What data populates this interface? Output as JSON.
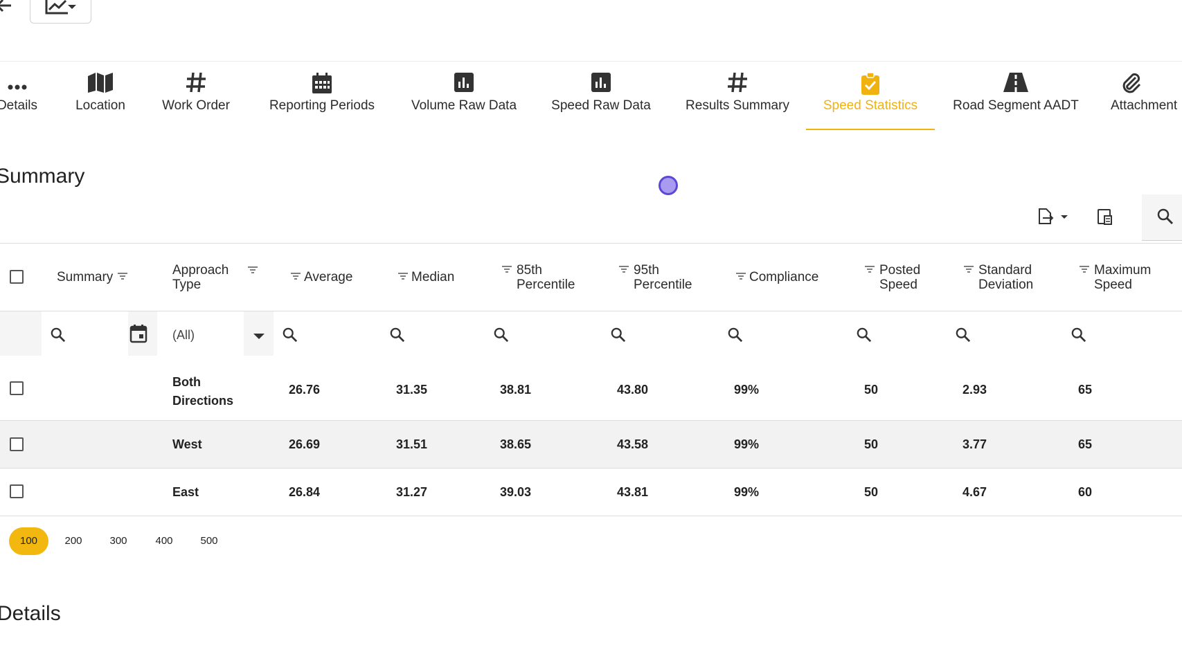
{
  "tabs": [
    {
      "label": "Details",
      "icon": "dots-icon"
    },
    {
      "label": "Location",
      "icon": "map-icon"
    },
    {
      "label": "Work Order",
      "icon": "hash-icon"
    },
    {
      "label": "Reporting Periods",
      "icon": "calendar-icon"
    },
    {
      "label": "Volume Raw Data",
      "icon": "bar-chart-icon"
    },
    {
      "label": "Speed Raw Data",
      "icon": "bar-chart-icon"
    },
    {
      "label": "Results Summary",
      "icon": "hash-icon"
    },
    {
      "label": "Speed Statistics",
      "icon": "clipboard-check-icon",
      "active": true
    },
    {
      "label": "Road Segment AADT",
      "icon": "road-icon"
    },
    {
      "label": "Attachment",
      "icon": "paperclip-icon"
    }
  ],
  "summary_title": "Summary",
  "details_title": "Details",
  "table": {
    "headers": {
      "summary": "Summary",
      "approach_line1": "Approach",
      "approach_line2": "Type",
      "average": "Average",
      "median": "Median",
      "p85_line1": "85th",
      "p85_line2": "Percentile",
      "p95_line1": "95th",
      "p95_line2": "Percentile",
      "compliance": "Compliance",
      "posted_line1": "Posted",
      "posted_line2": "Speed",
      "stddev_line1": "Standard",
      "stddev_line2": "Deviation",
      "max_line1": "Maximum",
      "max_line2": "Speed"
    },
    "approach_filter_value": "(All)",
    "rows": [
      {
        "approach_line1": "Both",
        "approach_line2": "Directions",
        "average": "26.76",
        "median": "31.35",
        "p85": "38.81",
        "p95": "43.80",
        "compliance": "99%",
        "posted": "50",
        "stddev": "2.93",
        "max": "65"
      },
      {
        "approach_line1": "West",
        "approach_line2": "",
        "average": "26.69",
        "median": "31.51",
        "p85": "38.65",
        "p95": "43.58",
        "compliance": "99%",
        "posted": "50",
        "stddev": "3.77",
        "max": "65"
      },
      {
        "approach_line1": "East",
        "approach_line2": "",
        "average": "26.84",
        "median": "31.27",
        "p85": "39.03",
        "p95": "43.81",
        "compliance": "99%",
        "posted": "50",
        "stddev": "4.67",
        "max": "60"
      }
    ]
  },
  "pager": {
    "sizes": [
      "100",
      "200",
      "300",
      "400",
      "500"
    ],
    "selected": "100"
  },
  "colors": {
    "accent": "#f2b80f",
    "row_highlight": "#f2f2f2"
  }
}
